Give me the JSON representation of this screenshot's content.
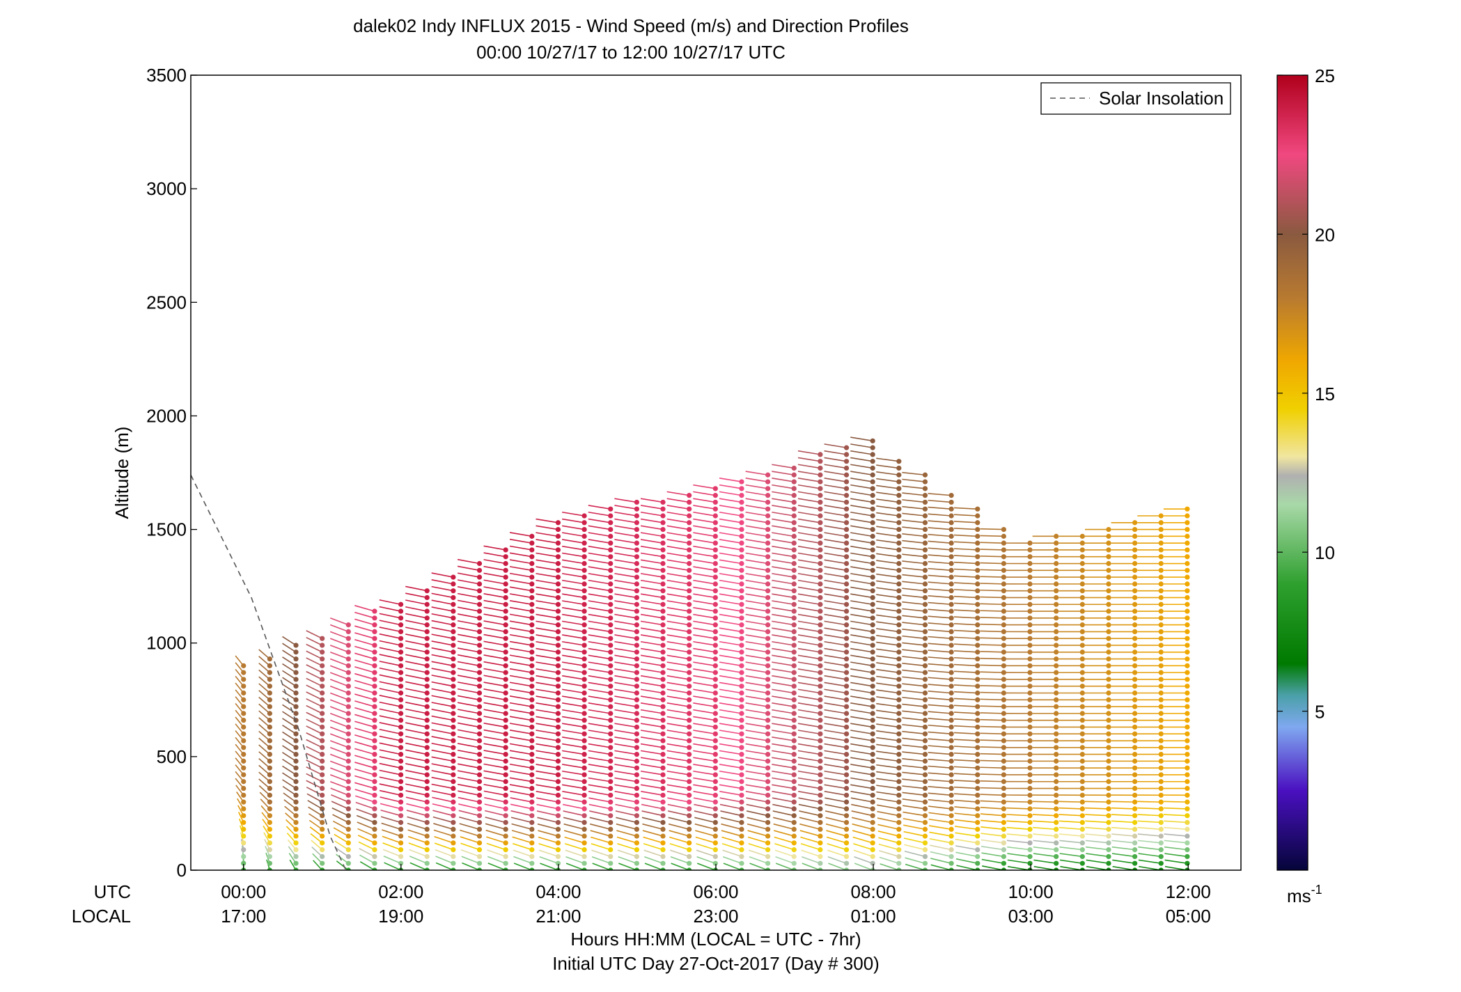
{
  "chart_data": {
    "type": "scatter",
    "title": "dalek02 Indy INFLUX 2015 - Wind Speed (m/s) and Direction Profiles",
    "subtitle": "00:00 10/27/17 to 12:00 10/27/17  UTC",
    "ylabel": "Altitude (m)",
    "ylim": [
      0,
      3500
    ],
    "xlim": [
      -0.67,
      12.67
    ],
    "yticks": [
      "0",
      "500",
      "1000",
      "1500",
      "2000",
      "2500",
      "3000",
      "3500"
    ],
    "ytick_values": [
      0,
      500,
      1000,
      1500,
      2000,
      2500,
      3000,
      3500
    ],
    "x_axis": {
      "utc_label": "UTC",
      "local_label": "LOCAL",
      "tick_hours": [
        0,
        2,
        4,
        6,
        8,
        10,
        12
      ],
      "utc_ticks": [
        "00:00",
        "02:00",
        "04:00",
        "06:00",
        "08:00",
        "10:00",
        "12:00"
      ],
      "local_ticks": [
        "17:00",
        "19:00",
        "21:00",
        "23:00",
        "01:00",
        "03:00",
        "05:00"
      ],
      "caption_line1": "Hours HH:MM  (LOCAL = UTC - 7hr)",
      "caption_line2": "Initial UTC Day 27-Oct-2017 (Day # 300)"
    },
    "legend": {
      "label": "Solar Insolation",
      "position": "top-right",
      "style": "dashed gray"
    },
    "colorbar": {
      "min": 0,
      "max": 25,
      "ticks": [
        "5",
        "10",
        "15",
        "20",
        "25"
      ],
      "tick_values": [
        5,
        10,
        15,
        20,
        25
      ],
      "unit": "ms",
      "unit_exp": "-1",
      "stops": [
        {
          "v": 0,
          "color": "#05053a"
        },
        {
          "v": 2.5,
          "color": "#4a10c0"
        },
        {
          "v": 4.5,
          "color": "#7fa8f0"
        },
        {
          "v": 5.5,
          "color": "#4aa0a8"
        },
        {
          "v": 6.5,
          "color": "#007a00"
        },
        {
          "v": 9,
          "color": "#2ea02e"
        },
        {
          "v": 11.5,
          "color": "#a8d8a8"
        },
        {
          "v": 12.4,
          "color": "#b0b0b0"
        },
        {
          "v": 13,
          "color": "#f0e6a0"
        },
        {
          "v": 14.5,
          "color": "#f0d000"
        },
        {
          "v": 16,
          "color": "#f0a800"
        },
        {
          "v": 18,
          "color": "#b87a30"
        },
        {
          "v": 20,
          "color": "#8a5a40"
        },
        {
          "v": 22.5,
          "color": "#f04880"
        },
        {
          "v": 25,
          "color": "#b0001c"
        }
      ]
    },
    "solar_insolation": {
      "hours": [
        -0.67,
        0.1,
        0.7,
        1.1,
        1.3
      ],
      "altitude": [
        1740,
        1200,
        620,
        150,
        0
      ]
    },
    "profiles": {
      "interval_hours": 0.333,
      "start_hour": 0,
      "end_hour": 12,
      "altitude_step_m": 30,
      "description_by_hour": [
        {
          "hour": 0,
          "top_m": 900,
          "speed_surface": 9,
          "speed_upper": 18,
          "direction_deg": 200
        },
        {
          "hour": 2,
          "top_m": 1200,
          "speed_surface": 9,
          "speed_upper": 24,
          "direction_deg": 245
        },
        {
          "hour": 4,
          "top_m": 1550,
          "speed_surface": 9,
          "speed_upper": 24,
          "direction_deg": 250
        },
        {
          "hour": 6,
          "top_m": 1700,
          "speed_surface": 9,
          "speed_upper": 23,
          "direction_deg": 250
        },
        {
          "hour": 8,
          "top_m": 1900,
          "speed_surface": 11,
          "speed_upper": 20,
          "direction_deg": 250
        },
        {
          "hour": 10,
          "top_m": 1450,
          "speed_surface": 7,
          "speed_upper": 18,
          "direction_deg": 270
        },
        {
          "hour": 12,
          "top_m": 1600,
          "speed_surface": 7,
          "speed_upper": 16,
          "direction_deg": 270
        }
      ]
    }
  }
}
